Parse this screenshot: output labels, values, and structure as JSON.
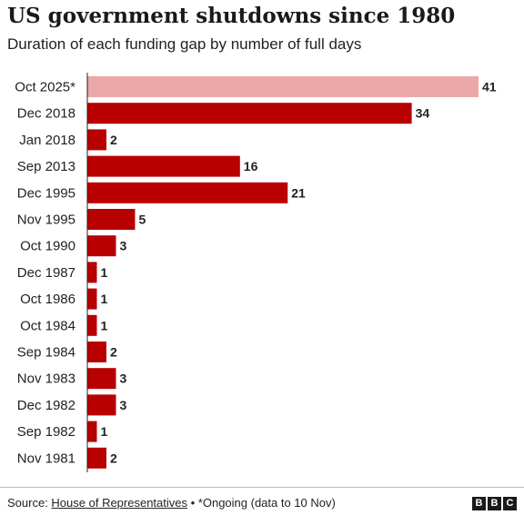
{
  "chart_data": {
    "type": "bar",
    "orientation": "horizontal",
    "title": "US government shutdowns since 1980",
    "subtitle": "Duration of each funding gap by number of full days",
    "categories": [
      "Oct 2025*",
      "Dec 2018",
      "Jan 2018",
      "Sep 2013",
      "Dec 1995",
      "Nov 1995",
      "Oct 1990",
      "Dec 1987",
      "Oct 1986",
      "Oct 1984",
      "Sep 1984",
      "Nov 1983",
      "Dec 1982",
      "Sep 1982",
      "Nov 1981"
    ],
    "values": [
      41,
      34,
      2,
      16,
      21,
      5,
      3,
      1,
      1,
      1,
      2,
      3,
      3,
      1,
      2
    ],
    "xlim": [
      0,
      41
    ],
    "grid": false,
    "colors": {
      "bar": "#b80000",
      "highlight": "#eaa8a8",
      "axis": "#222222"
    },
    "highlight_index": 0
  },
  "footer": {
    "source_prefix": "Source: ",
    "source_link": "House of Representatives",
    "note": " • *Ongoing (data to 10 Nov)"
  },
  "logo": {
    "letters": [
      "B",
      "B",
      "C"
    ]
  }
}
